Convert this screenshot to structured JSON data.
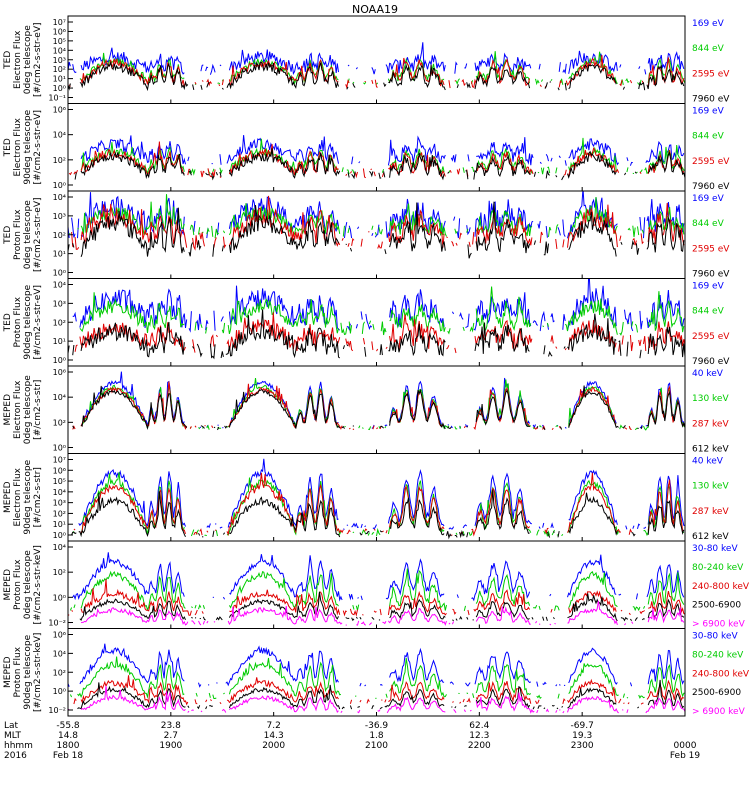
{
  "chart_data": {
    "type": "line",
    "title": "NOAA19",
    "x_axis": {
      "rows": [
        {
          "label": "Lat",
          "values": [
            "-55.8",
            "23.8",
            "7.2",
            "-36.9",
            "62.4",
            "-69.7"
          ]
        },
        {
          "label": "MLT",
          "values": [
            "14.8",
            "2.7",
            "14.3",
            "1.8",
            "12.3",
            "19.3"
          ]
        },
        {
          "label": "hhmm",
          "values": [
            "1800",
            "1900",
            "2000",
            "2100",
            "2200",
            "2300",
            "0000"
          ]
        },
        {
          "label": "2016",
          "values": [
            "Feb 18",
            "Feb 19"
          ]
        }
      ],
      "times": [
        "1800",
        "1900",
        "2000",
        "2100",
        "2200",
        "2300",
        "0000"
      ]
    },
    "panels": [
      {
        "ylabel": [
          "TED",
          "Electron Flux",
          "0deg telescope",
          "[#/cm2-s-str-eV]"
        ],
        "yticks": [
          "10⁻¹",
          "10⁰",
          "10¹",
          "10²",
          "10³",
          "10⁴",
          "10⁵",
          "10⁶",
          "10⁷"
        ],
        "ylog": [
          -1,
          7
        ],
        "series": [
          {
            "name": "7960 eV",
            "color": "#000000",
            "baseline": 0.6,
            "peak": 2.4,
            "noise": 0.4
          },
          {
            "name": "2595 eV",
            "color": "#e00000",
            "baseline": 0.8,
            "peak": 2.7,
            "noise": 0.4
          },
          {
            "name": "844 eV",
            "color": "#00cc00",
            "baseline": 1.0,
            "peak": 2.9,
            "noise": 0.3
          },
          {
            "name": "169 eV",
            "color": "#0000ff",
            "baseline": 2.2,
            "peak": 3.2,
            "noise": 0.6
          }
        ]
      },
      {
        "ylabel": [
          "TED",
          "Electron Flux",
          "90deg telescope",
          "[#/cm2-s-str-eV]"
        ],
        "yticks": [
          "10⁰",
          "10²",
          "10⁴",
          "10⁶"
        ],
        "ylog": [
          -0.3,
          7
        ],
        "series": [
          {
            "name": "7960 eV",
            "color": "#000000",
            "baseline": 1.0,
            "peak": 2.6,
            "noise": 0.4
          },
          {
            "name": "2595 eV",
            "color": "#e00000",
            "baseline": 1.2,
            "peak": 2.9,
            "noise": 0.4
          },
          {
            "name": "844 eV",
            "color": "#00cc00",
            "baseline": 1.4,
            "peak": 3.0,
            "noise": 0.3
          },
          {
            "name": "169 eV",
            "color": "#0000ff",
            "baseline": 2.3,
            "peak": 3.6,
            "noise": 0.5
          }
        ]
      },
      {
        "ylabel": [
          "TED",
          "Proton Flux",
          "0deg telescope",
          "[#/cm2-s-str-eV]"
        ],
        "yticks": [
          "10⁰",
          "10¹",
          "10²",
          "10³",
          "10⁴"
        ],
        "ylog": [
          -0.3,
          4.5
        ],
        "series": [
          {
            "name": "7960 eV",
            "color": "#000000",
            "baseline": 1.3,
            "peak": 2.8,
            "noise": 0.5
          },
          {
            "name": "2595 eV",
            "color": "#e00000",
            "baseline": 1.8,
            "peak": 3.1,
            "noise": 0.5
          },
          {
            "name": "844 eV",
            "color": "#00cc00",
            "baseline": 2.3,
            "peak": 3.3,
            "noise": 0.4
          },
          {
            "name": "169 eV",
            "color": "#0000ff",
            "baseline": 2.5,
            "peak": 3.6,
            "noise": 0.6
          }
        ]
      },
      {
        "ylabel": [
          "TED",
          "Proton Flux",
          "90deg telescope",
          "[#/cm2-s-str-eV]"
        ],
        "yticks": [
          "10⁰",
          "10¹",
          "10²",
          "10³",
          "10⁴"
        ],
        "ylog": [
          -0.3,
          4.5
        ],
        "series": [
          {
            "name": "7960 eV",
            "color": "#000000",
            "baseline": 0.6,
            "peak": 1.6,
            "noise": 0.5
          },
          {
            "name": "2595 eV",
            "color": "#e00000",
            "baseline": 0.9,
            "peak": 1.8,
            "noise": 0.5
          },
          {
            "name": "844 eV",
            "color": "#00cc00",
            "baseline": 1.8,
            "peak": 3.0,
            "noise": 0.4
          },
          {
            "name": "169 eV",
            "color": "#0000ff",
            "baseline": 2.2,
            "peak": 3.4,
            "noise": 0.6
          }
        ]
      },
      {
        "ylabel": [
          "MEPED",
          "Electron Flux",
          "0deg telescope",
          "[#/cm2-s-str]"
        ],
        "yticks": [
          "10⁰",
          "10²",
          "10⁴",
          "10⁶"
        ],
        "ylog": [
          -0.3,
          7.5
        ],
        "series": [
          {
            "name": "612 keV",
            "color": "#000000",
            "baseline": 2.0,
            "peak": 5.2,
            "noise": 0.2
          },
          {
            "name": "287 keV",
            "color": "#e00000",
            "baseline": 2.0,
            "peak": 5.4,
            "noise": 0.2
          },
          {
            "name": "130 keV",
            "color": "#00cc00",
            "baseline": 2.0,
            "peak": 5.6,
            "noise": 0.2
          },
          {
            "name": "40 keV",
            "color": "#0000ff",
            "baseline": 2.1,
            "peak": 6.0,
            "noise": 0.2
          }
        ]
      },
      {
        "ylabel": [
          "MEPED",
          "Electron Flux",
          "90deg telescope",
          "[#/cm2-s-str]"
        ],
        "yticks": [
          "10⁰",
          "10¹",
          "10²",
          "10³",
          "10⁴",
          "10⁵",
          "10⁶",
          "10⁷"
        ],
        "ylog": [
          -0.3,
          7.3
        ],
        "series": [
          {
            "name": "612 keV",
            "color": "#000000",
            "baseline": 0.3,
            "peak": 3.2,
            "noise": 0.3
          },
          {
            "name": "287 keV",
            "color": "#e00000",
            "baseline": 0.5,
            "peak": 4.4,
            "noise": 0.3
          },
          {
            "name": "130 keV",
            "color": "#00cc00",
            "baseline": 0.4,
            "peak": 4.8,
            "noise": 0.3
          },
          {
            "name": "40 keV",
            "color": "#0000ff",
            "baseline": 1.0,
            "peak": 5.6,
            "noise": 0.3
          }
        ]
      },
      {
        "ylabel": [
          "MEPED",
          "Proton Flux",
          "0deg telescope",
          "[#/cm2-s-str-keV]"
        ],
        "yticks": [
          "10⁻²",
          "10⁰",
          "10²",
          "10⁴"
        ],
        "ylog": [
          -2.5,
          5.5
        ],
        "series": [
          {
            "name": "> 6900 keV",
            "color": "#ff00ff",
            "baseline": -2.0,
            "peak": -0.8,
            "noise": 0.2
          },
          {
            "name": "2500-6900",
            "color": "#000000",
            "baseline": -1.6,
            "peak": 0.0,
            "noise": 0.2
          },
          {
            "name": "240-800 keV",
            "color": "#e00000",
            "baseline": -1.0,
            "peak": 0.7,
            "noise": 0.3
          },
          {
            "name": "80-240 keV",
            "color": "#00cc00",
            "baseline": -0.6,
            "peak": 2.4,
            "noise": 0.3
          },
          {
            "name": "30-80 keV",
            "color": "#0000ff",
            "baseline": 0.4,
            "peak": 3.6,
            "noise": 0.3
          }
        ]
      },
      {
        "ylabel": [
          "MEPED",
          "Proton Flux",
          "90deg telescope",
          "[#/cm2-s-str-keV]"
        ],
        "yticks": [
          "10⁻²",
          "10⁰",
          "10²",
          "10⁴",
          "10⁶"
        ],
        "ylog": [
          -2.5,
          6.5
        ],
        "series": [
          {
            "name": "> 6900 keV",
            "color": "#ff00ff",
            "baseline": -2.0,
            "peak": -0.6,
            "noise": 0.2
          },
          {
            "name": "2500-6900",
            "color": "#000000",
            "baseline": -1.6,
            "peak": 0.2,
            "noise": 0.2
          },
          {
            "name": "240-800 keV",
            "color": "#e00000",
            "baseline": -1.0,
            "peak": 0.9,
            "noise": 0.3
          },
          {
            "name": "80-240 keV",
            "color": "#00cc00",
            "baseline": -0.4,
            "peak": 2.8,
            "noise": 0.3
          },
          {
            "name": "30-80 keV",
            "color": "#0000ff",
            "baseline": 0.8,
            "peak": 4.2,
            "noise": 0.3
          }
        ]
      }
    ]
  }
}
